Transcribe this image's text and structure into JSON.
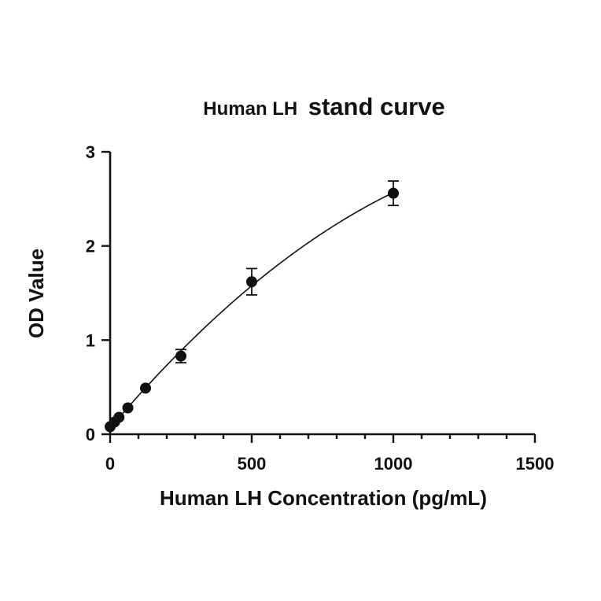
{
  "chart_data": {
    "type": "scatter",
    "title_part1": "Human LH",
    "title_part2": "stand curve",
    "xlabel": "Human LH Concentration (pg/mL)",
    "ylabel": "OD Value",
    "xlim": [
      0,
      1500
    ],
    "ylim": [
      0,
      3
    ],
    "x_ticks": [
      0,
      500,
      1000,
      1500
    ],
    "y_ticks": [
      0,
      1,
      2,
      3
    ],
    "grid": false,
    "fit_curve": true,
    "points": [
      {
        "x": 0,
        "y": 0.08,
        "err": 0
      },
      {
        "x": 15.6,
        "y": 0.13,
        "err": 0
      },
      {
        "x": 31.25,
        "y": 0.18,
        "err": 0
      },
      {
        "x": 62.5,
        "y": 0.28,
        "err": 0
      },
      {
        "x": 125,
        "y": 0.49,
        "err": 0
      },
      {
        "x": 250,
        "y": 0.83,
        "err": 0.07
      },
      {
        "x": 500,
        "y": 1.62,
        "err": 0.14
      },
      {
        "x": 1000,
        "y": 2.56,
        "err": 0.13
      }
    ]
  }
}
